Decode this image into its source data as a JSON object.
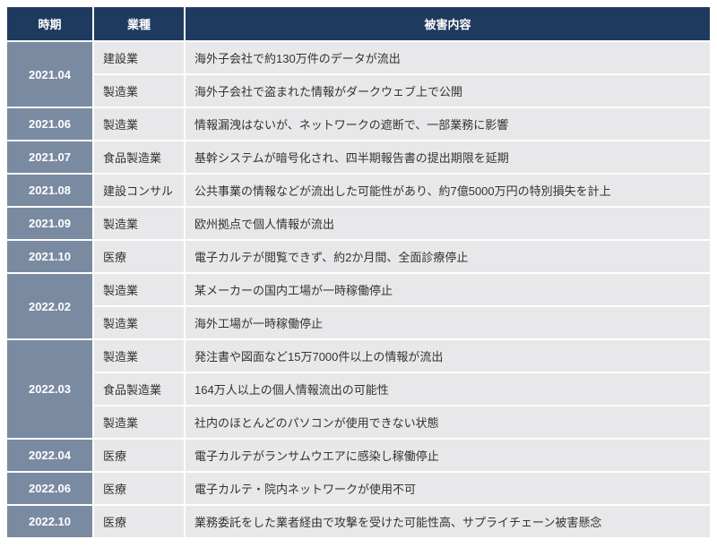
{
  "columns": {
    "date": "時期",
    "industry": "業種",
    "content": "被害内容"
  },
  "rows": [
    {
      "date": "2021.04",
      "rowspan": 2,
      "industry": "建設業",
      "content": "海外子会社で約130万件のデータが流出"
    },
    {
      "date": "",
      "industry": "製造業",
      "content": "海外子会社で盗まれた情報がダークウェブ上で公開"
    },
    {
      "date": "2021.06",
      "rowspan": 1,
      "industry": "製造業",
      "content": "情報漏洩はないが、ネットワークの遮断で、一部業務に影響"
    },
    {
      "date": "2021.07",
      "rowspan": 1,
      "industry": "食品製造業",
      "content": "基幹システムが暗号化され、四半期報告書の提出期限を延期"
    },
    {
      "date": "2021.08",
      "rowspan": 1,
      "industry": "建設コンサル",
      "content": "公共事業の情報などが流出した可能性があり、約7億5000万円の特別損失を計上"
    },
    {
      "date": "2021.09",
      "rowspan": 1,
      "industry": "製造業",
      "content": "欧州拠点で個人情報が流出"
    },
    {
      "date": "2021.10",
      "rowspan": 1,
      "industry": "医療",
      "content": "電子カルテが閲覧できず、約2か月間、全面診療停止"
    },
    {
      "date": "2022.02",
      "rowspan": 2,
      "industry": "製造業",
      "content": "某メーカーの国内工場が一時稼働停止"
    },
    {
      "date": "",
      "industry": "製造業",
      "content": "海外工場が一時稼働停止"
    },
    {
      "date": "2022.03",
      "rowspan": 3,
      "industry": "製造業",
      "content": "発注書や図面など15万7000件以上の情報が流出"
    },
    {
      "date": "",
      "industry": "食品製造業",
      "content": "164万人以上の個人情報流出の可能性"
    },
    {
      "date": "",
      "industry": "製造業",
      "content": "社内のほとんどのパソコンが使用できない状態"
    },
    {
      "date": "2022.04",
      "rowspan": 1,
      "industry": "医療",
      "content": "電子カルテがランサムウエアに感染し稼働停止"
    },
    {
      "date": "2022.06",
      "rowspan": 1,
      "industry": "医療",
      "content": "電子カルテ・院内ネットワークが使用不可"
    },
    {
      "date": "2022.10",
      "rowspan": 1,
      "industry": "医療",
      "content": "業務委託をした業者経由で攻撃を受けた可能性高、サプライチェーン被害懸念"
    }
  ],
  "colors": {
    "header_bg": "#1f3a5f",
    "header_text": "#ffffff",
    "date_bg": "#7a8aa0",
    "date_text": "#ffffff",
    "cell_bg": "#e8e8ea",
    "cell_text": "#333333",
    "spacing_color": "#ffffff"
  }
}
